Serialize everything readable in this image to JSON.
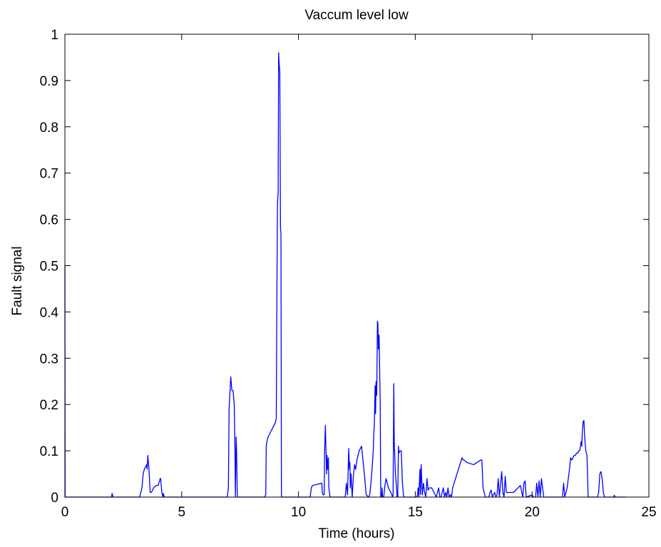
{
  "chart_data": {
    "type": "line",
    "title": "Vaccum level low",
    "xlabel": "Time (hours)",
    "ylabel": "Fault signal",
    "xlim": [
      0,
      25
    ],
    "ylim": [
      0,
      1
    ],
    "xticks": [
      "0",
      "5",
      "10",
      "15",
      "20",
      "25"
    ],
    "yticks": [
      "0",
      "0.1",
      "0.2",
      "0.3",
      "0.4",
      "0.5",
      "0.6",
      "0.7",
      "0.8",
      "0.9",
      "1"
    ],
    "grid": false,
    "line_color": "#0000ff",
    "series": [
      {
        "x": [
          0,
          0.01,
          0.03,
          0.05,
          2.0,
          2.02,
          2.04,
          2.06,
          2.1,
          3.2,
          3.3,
          3.35,
          3.4,
          3.45,
          3.5,
          3.52,
          3.55,
          3.6,
          3.65,
          3.7,
          3.8,
          3.9,
          4.0,
          4.02,
          4.05,
          4.08,
          4.1,
          4.15,
          4.2,
          4.22,
          4.25,
          4.3,
          4.4,
          6.95,
          7.0,
          7.03,
          7.06,
          7.1,
          7.15,
          7.2,
          7.25,
          7.28,
          7.3,
          7.33,
          7.35,
          7.38,
          7.4,
          7.5,
          8.5,
          8.55,
          8.6,
          8.62,
          8.65,
          8.7,
          8.8,
          8.9,
          9.0,
          9.03,
          9.05,
          9.08,
          9.1,
          9.13,
          9.15,
          9.18,
          9.2,
          9.23,
          9.25,
          9.27,
          9.3,
          9.5,
          10.5,
          10.55,
          10.6,
          11.0,
          11.02,
          11.05,
          11.1,
          11.12,
          11.15,
          11.18,
          11.2,
          11.22,
          11.25,
          11.28,
          11.3,
          11.35,
          11.5,
          12.0,
          12.05,
          12.1,
          12.15,
          12.18,
          12.2,
          12.22,
          12.25,
          12.3,
          12.35,
          12.4,
          12.45,
          12.5,
          12.55,
          12.6,
          12.65,
          12.7,
          12.8,
          12.9,
          13.0,
          13.05,
          13.08,
          13.1,
          13.15,
          13.2,
          13.22,
          13.25,
          13.28,
          13.3,
          13.32,
          13.35,
          13.38,
          13.4,
          13.42,
          13.45,
          13.5,
          13.52,
          13.55,
          13.58,
          13.6,
          13.65,
          13.7,
          13.75,
          13.8,
          13.85,
          13.9,
          13.95,
          14.0,
          14.02,
          14.05,
          14.08,
          14.1,
          14.15,
          14.2,
          14.22,
          14.25,
          14.28,
          14.3,
          14.35,
          14.4,
          14.45,
          14.5,
          15.0,
          15.02,
          15.05,
          15.1,
          15.12,
          15.15,
          15.2,
          15.22,
          15.25,
          15.3,
          15.35,
          15.4,
          15.45,
          15.5,
          15.55,
          15.6,
          15.65,
          15.7,
          15.8,
          15.9,
          16.0,
          16.05,
          16.1,
          16.2,
          16.25,
          16.3,
          16.35,
          16.4,
          16.45,
          16.5,
          16.55,
          16.6,
          17.0,
          17.05,
          17.1,
          17.2,
          17.5,
          17.8,
          17.85,
          17.9,
          18.0,
          18.1,
          18.15,
          18.2,
          18.25,
          18.3,
          18.35,
          18.4,
          18.45,
          18.5,
          18.55,
          18.6,
          18.7,
          18.75,
          18.8,
          18.85,
          18.9,
          19.0,
          19.1,
          19.2,
          19.3,
          19.5,
          19.6,
          19.65,
          19.7,
          19.75,
          20.0,
          20.05,
          20.1,
          20.15,
          20.2,
          20.25,
          20.3,
          20.35,
          20.4,
          20.5,
          21.0,
          21.2,
          21.25,
          21.3,
          21.35,
          21.4,
          21.45,
          21.5,
          21.55,
          21.6,
          21.65,
          21.7,
          21.75,
          21.8,
          21.85,
          21.9,
          21.95,
          22.0,
          22.03,
          22.06,
          22.1,
          22.13,
          22.15,
          22.18,
          22.2,
          22.22,
          22.25,
          22.3,
          22.35,
          22.4,
          22.5,
          22.6,
          22.7,
          22.75,
          22.8,
          22.85,
          22.9,
          22.95,
          23.0,
          23.05,
          23.1,
          23.2,
          23.5,
          23.52,
          23.55,
          24.0
        ],
        "y": [
          0.5,
          0.0,
          0.0,
          0.0,
          0.0,
          0.008,
          0.004,
          0.0,
          0.0,
          0.0,
          0.02,
          0.05,
          0.06,
          0.065,
          0.07,
          0.06,
          0.09,
          0.06,
          0.01,
          0.01,
          0.02,
          0.025,
          0.025,
          0.03,
          0.035,
          0.04,
          0.04,
          0.01,
          0.0,
          0.008,
          0.0,
          0.0,
          0.0,
          0.0,
          0.02,
          0.19,
          0.22,
          0.26,
          0.23,
          0.23,
          0.2,
          0.1,
          0.0,
          0.13,
          0.1,
          0.005,
          0.0,
          0.0,
          0.0,
          0.0,
          0.005,
          0.11,
          0.12,
          0.13,
          0.14,
          0.15,
          0.16,
          0.165,
          0.17,
          0.47,
          0.63,
          0.66,
          0.96,
          0.93,
          0.92,
          0.58,
          0.57,
          0.0,
          0.0,
          0.0,
          0.0,
          0.02,
          0.025,
          0.03,
          0.01,
          0.005,
          0.005,
          0.1,
          0.155,
          0.1,
          0.05,
          0.09,
          0.06,
          0.085,
          0.02,
          0.0,
          0.0,
          0.0,
          0.03,
          0.005,
          0.105,
          0.06,
          0.075,
          0.02,
          0.05,
          0.0,
          0.045,
          0.07,
          0.06,
          0.08,
          0.09,
          0.1,
          0.105,
          0.11,
          0.06,
          0.005,
          0.0,
          0.005,
          0.02,
          0.03,
          0.06,
          0.1,
          0.13,
          0.16,
          0.24,
          0.18,
          0.25,
          0.22,
          0.38,
          0.375,
          0.32,
          0.35,
          0.2,
          0.0,
          0.0,
          0.02,
          0.0,
          0.0,
          0.025,
          0.04,
          0.03,
          0.02,
          0.015,
          0.01,
          0.005,
          0.0,
          0.005,
          0.245,
          0.12,
          0.05,
          0.02,
          0.0,
          0.0,
          0.11,
          0.095,
          0.1,
          0.1,
          0.03,
          0.0,
          0.0,
          0.0,
          0.0,
          0.005,
          0.02,
          0.0,
          0.06,
          0.005,
          0.07,
          0.005,
          0.03,
          0.01,
          0.0,
          0.04,
          0.015,
          0.02,
          0.02,
          0.02,
          0.01,
          0.0,
          0.02,
          0.0,
          0.0,
          0.02,
          0.0,
          0.01,
          0.0,
          0.02,
          0.0,
          0.005,
          0.0,
          0.02,
          0.085,
          0.08,
          0.08,
          0.075,
          0.07,
          0.08,
          0.08,
          0.02,
          0.0,
          0.0,
          0.0,
          0.01,
          0.015,
          0.0,
          0.005,
          0.01,
          0.0,
          0.005,
          0.04,
          0.0,
          0.055,
          0.01,
          0.0,
          0.045,
          0.01,
          0.01,
          0.01,
          0.01,
          0.015,
          0.025,
          0.0,
          0.03,
          0.035,
          0.0,
          0.005,
          0.0,
          0.0,
          0.0,
          0.03,
          0.0,
          0.035,
          0.0,
          0.04,
          0.0,
          0.0,
          0.0,
          0.0,
          0.0,
          0.03,
          0.0,
          0.01,
          0.02,
          0.04,
          0.06,
          0.085,
          0.08,
          0.085,
          0.09,
          0.09,
          0.095,
          0.095,
          0.1,
          0.1,
          0.105,
          0.12,
          0.11,
          0.14,
          0.16,
          0.165,
          0.165,
          0.13,
          0.1,
          0.09,
          0.0,
          0.0,
          0.0,
          0.0,
          0.0,
          0.0,
          0.01,
          0.05,
          0.055,
          0.04,
          0.01,
          0.0,
          0.0,
          0.0,
          0.004,
          0.0,
          0.0
        ]
      }
    ]
  }
}
